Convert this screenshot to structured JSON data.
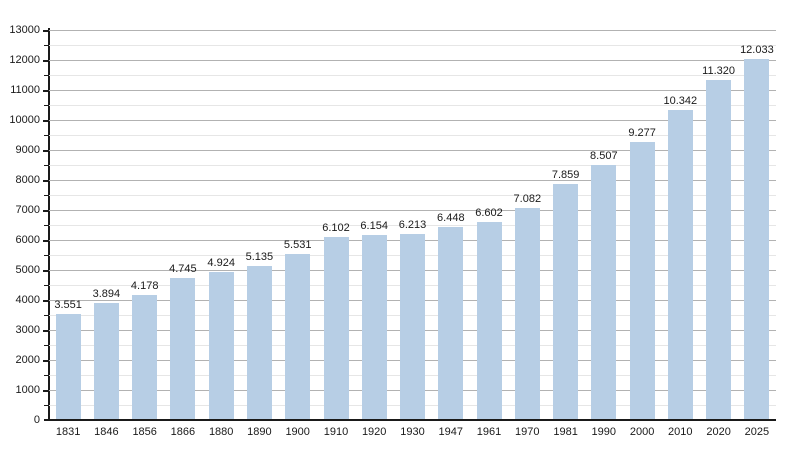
{
  "chart_data": {
    "type": "bar",
    "title": "",
    "xlabel": "",
    "ylabel": "",
    "categories": [
      "1831",
      "1846",
      "1856",
      "1866",
      "1880",
      "1890",
      "1900",
      "1910",
      "1920",
      "1930",
      "1947",
      "1961",
      "1970",
      "1981",
      "1990",
      "2000",
      "2010",
      "2020",
      "2025"
    ],
    "values": [
      3551,
      3894,
      4178,
      4745,
      4924,
      5135,
      5531,
      6102,
      6154,
      6213,
      6448,
      6602,
      7082,
      7859,
      8507,
      9277,
      10342,
      11320,
      12033
    ],
    "value_labels": [
      "3.551",
      "3.894",
      "4.178",
      "4.745",
      "4.924",
      "5.135",
      "5.531",
      "6.102",
      "6.154",
      "6.213",
      "6.448",
      "6.602",
      "7.082",
      "7.859",
      "8.507",
      "9.277",
      "10.342",
      "11.320",
      "12.033"
    ],
    "ylim": [
      0,
      13000
    ],
    "y_major_step": 1000,
    "y_minor_step": 500,
    "y_tick_labels": [
      "0",
      "1000",
      "2000",
      "3000",
      "4000",
      "5000",
      "6000",
      "7000",
      "8000",
      "9000",
      "10000",
      "11000",
      "12000",
      "13000"
    ],
    "grid": true,
    "legend_position": "none",
    "colors": {
      "bar": "#b7cee5",
      "grid_major": "#b2b2b2",
      "grid_minor": "#e6e6e6",
      "axis": "#1a1a1a",
      "text": "#1a1a1a"
    }
  }
}
